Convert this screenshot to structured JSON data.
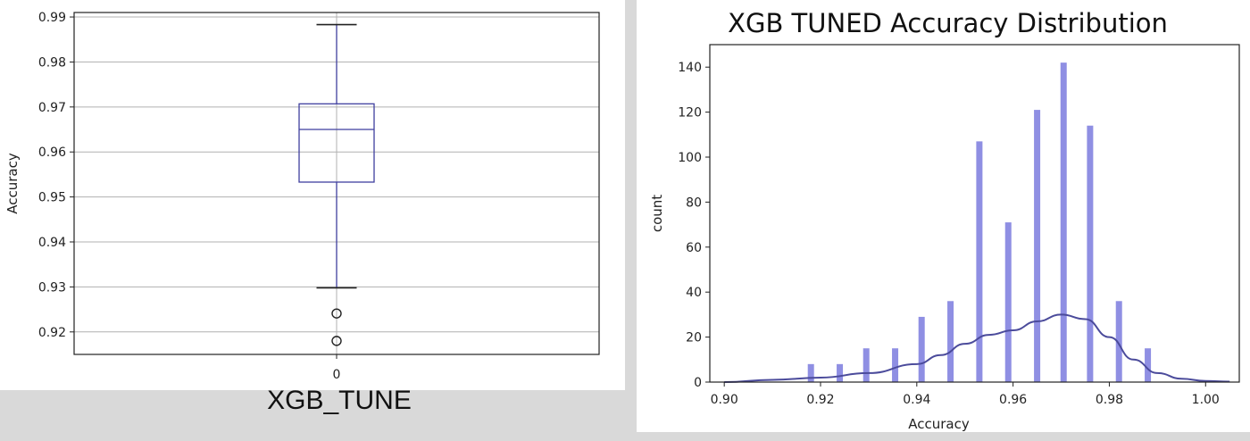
{
  "chart_data": [
    {
      "type": "box",
      "xlabel": "",
      "ylabel": "Accuracy",
      "ylim": [
        0.915,
        0.991
      ],
      "yticks": [
        "0.92",
        "0.93",
        "0.94",
        "0.95",
        "0.96",
        "0.97",
        "0.98",
        "0.99"
      ],
      "yticks_values": [
        0.92,
        0.93,
        0.94,
        0.95,
        0.96,
        0.97,
        0.98,
        0.99
      ],
      "categories": [
        "0"
      ],
      "grid": true,
      "box": {
        "whisker_low": 0.9298,
        "q1": 0.9533,
        "median": 0.965,
        "q3": 0.9707,
        "whisker_high": 0.9883
      },
      "outliers": [
        0.9241,
        0.918
      ],
      "caption": "XGB_TUNE",
      "colors": {
        "box": "#3f3f9f",
        "median": "#3f3f9f",
        "grid": "#b0b0b0"
      }
    },
    {
      "type": "bar",
      "title": "XGB TUNED Accuracy Distribution",
      "xlabel": "Accuracy",
      "ylabel": "count",
      "xlim": [
        0.897,
        1.007
      ],
      "ylim": [
        0,
        150
      ],
      "xticks": [
        "0.90",
        "0.92",
        "0.94",
        "0.96",
        "0.98",
        "1.00"
      ],
      "xticks_values": [
        0.9,
        0.92,
        0.94,
        0.96,
        0.98,
        1.0
      ],
      "yticks": [
        "0",
        "20",
        "40",
        "60",
        "80",
        "100",
        "120",
        "140"
      ],
      "yticks_values": [
        0,
        20,
        40,
        60,
        80,
        100,
        120,
        140
      ],
      "x": [
        0.918,
        0.924,
        0.9295,
        0.9355,
        0.941,
        0.947,
        0.953,
        0.959,
        0.965,
        0.9705,
        0.976,
        0.982,
        0.988
      ],
      "values": [
        8,
        8,
        15,
        15,
        29,
        36,
        107,
        71,
        121,
        142,
        114,
        36,
        15
      ],
      "kde": {
        "x": [
          0.9,
          0.91,
          0.92,
          0.93,
          0.94,
          0.945,
          0.95,
          0.955,
          0.96,
          0.965,
          0.97,
          0.975,
          0.98,
          0.985,
          0.99,
          0.995,
          1.0,
          1.005
        ],
        "y": [
          0,
          1,
          2,
          4,
          8,
          12,
          17,
          21,
          23,
          27,
          30,
          28,
          20,
          10,
          4,
          1.5,
          0.5,
          0.2
        ]
      },
      "colors": {
        "bars": "#8f8fe3",
        "kde": "#4b4b9b"
      }
    }
  ]
}
